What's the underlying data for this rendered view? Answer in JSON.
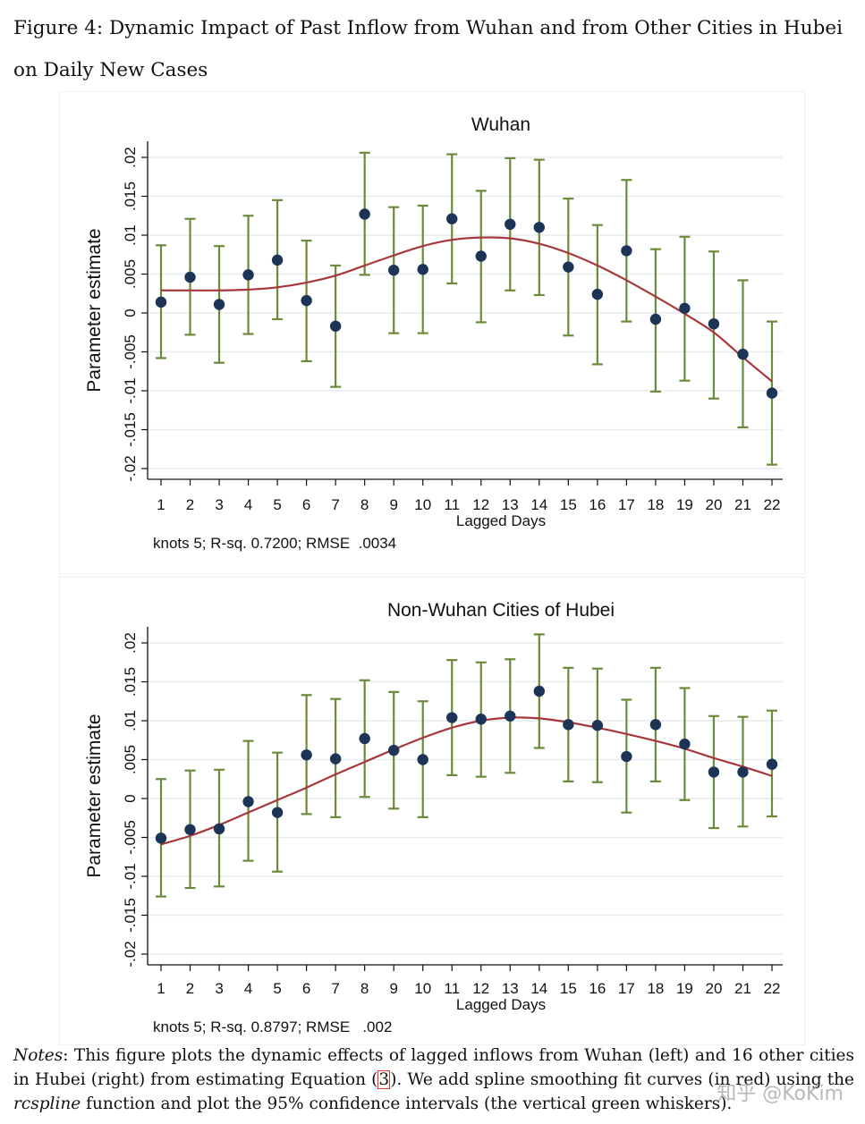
{
  "caption": {
    "text": "Figure 4: Dynamic Impact of Past Inflow from Wuhan and from Other Cities in Hubei on Daily New Cases"
  },
  "notes": {
    "label": "Notes",
    "part1": ": This figure plots the dynamic effects of lagged inflows from Wuhan (left) and 16 other cities in Hubei (right) from estimating Equation (",
    "ref": "3",
    "part2": "). We add spline smoothing fit curves (in red) using the ",
    "func": "rcspline",
    "part3": " function and plot the 95% confidence intervals (the vertical green whiskers)."
  },
  "watermark": "知乎 @KoKim",
  "colors": {
    "point": "#1c3557",
    "whisker": "#6b8a3a",
    "fit": "#a6383c",
    "grid": "#e6ecef",
    "axis": "#111111"
  },
  "chart_data": [
    {
      "type": "scatter",
      "title": "Wuhan",
      "xlabel": "Lagged Days",
      "ylabel": "Parameter estimate",
      "note": "knots 5; R-sq. 0.7200; RMSE  .0034",
      "xlim": [
        1,
        22
      ],
      "ylim": [
        -0.02,
        0.02
      ],
      "xticks": [
        "1",
        "2",
        "3",
        "4",
        "5",
        "6",
        "7",
        "8",
        "9",
        "10",
        "11",
        "12",
        "13",
        "14",
        "15",
        "16",
        "17",
        "18",
        "19",
        "20",
        "21",
        "22"
      ],
      "yticks": [
        {
          "v": -0.02,
          "label": "-.02"
        },
        {
          "v": -0.015,
          "label": "-.015"
        },
        {
          "v": -0.01,
          "label": "-.01"
        },
        {
          "v": -0.005,
          "label": "-.005"
        },
        {
          "v": 0,
          "label": "0"
        },
        {
          "v": 0.005,
          "label": ".005"
        },
        {
          "v": 0.01,
          "label": ".01"
        },
        {
          "v": 0.015,
          "label": ".015"
        },
        {
          "v": 0.02,
          "label": ".02"
        }
      ],
      "grid": true,
      "x": [
        1,
        2,
        3,
        4,
        5,
        6,
        7,
        8,
        9,
        10,
        11,
        12,
        13,
        14,
        15,
        16,
        17,
        18,
        19,
        20,
        21,
        22
      ],
      "estimate": [
        0.0014,
        0.0046,
        0.0011,
        0.0049,
        0.0068,
        0.0016,
        -0.0017,
        0.0127,
        0.0055,
        0.0056,
        0.0121,
        0.0073,
        0.0114,
        0.011,
        0.0059,
        0.0024,
        0.008,
        -0.0008,
        0.0006,
        -0.0014,
        -0.0053,
        -0.0103
      ],
      "ci_lower": [
        -0.0058,
        -0.0028,
        -0.0064,
        -0.0027,
        -0.0008,
        -0.0062,
        -0.0095,
        0.0049,
        -0.0026,
        -0.0026,
        0.0038,
        -0.0012,
        0.0029,
        0.0023,
        -0.0029,
        -0.0066,
        -0.0011,
        -0.0101,
        -0.0087,
        -0.011,
        -0.0147,
        -0.0195
      ],
      "ci_upper": [
        0.0087,
        0.0121,
        0.0086,
        0.0125,
        0.0145,
        0.0093,
        0.0061,
        0.0206,
        0.0136,
        0.0138,
        0.0204,
        0.0157,
        0.0199,
        0.0197,
        0.0147,
        0.0113,
        0.0171,
        0.0082,
        0.0098,
        0.0079,
        0.0042,
        -0.0011
      ],
      "fit": [
        0.0029,
        0.0029,
        0.0029,
        0.003,
        0.0033,
        0.0039,
        0.0048,
        0.0061,
        0.0074,
        0.0086,
        0.0094,
        0.0097,
        0.0096,
        0.0089,
        0.0077,
        0.0061,
        0.0042,
        0.0021,
        -0.0001,
        -0.0025,
        -0.0057,
        -0.0088
      ]
    },
    {
      "type": "scatter",
      "title": "Non-Wuhan Cities of Hubei",
      "xlabel": "Lagged Days",
      "ylabel": "Parameter estimate",
      "note": "knots 5; R-sq. 0.8797; RMSE   .002",
      "xlim": [
        1,
        22
      ],
      "ylim": [
        -0.02,
        0.02
      ],
      "xticks": [
        "1",
        "2",
        "3",
        "4",
        "5",
        "6",
        "7",
        "8",
        "9",
        "10",
        "11",
        "12",
        "13",
        "14",
        "15",
        "16",
        "17",
        "18",
        "19",
        "20",
        "21",
        "22"
      ],
      "yticks": [
        {
          "v": -0.02,
          "label": "-.02"
        },
        {
          "v": -0.015,
          "label": "-.015"
        },
        {
          "v": -0.01,
          "label": "-.01"
        },
        {
          "v": -0.005,
          "label": "-.005"
        },
        {
          "v": 0,
          "label": "0"
        },
        {
          "v": 0.005,
          "label": ".005"
        },
        {
          "v": 0.01,
          "label": ".01"
        },
        {
          "v": 0.015,
          "label": ".015"
        },
        {
          "v": 0.02,
          "label": ".02"
        }
      ],
      "grid": true,
      "x": [
        1,
        2,
        3,
        4,
        5,
        6,
        7,
        8,
        9,
        10,
        11,
        12,
        13,
        14,
        15,
        16,
        17,
        18,
        19,
        20,
        21,
        22
      ],
      "estimate": [
        -0.0051,
        -0.004,
        -0.0039,
        -0.0004,
        -0.0018,
        0.0056,
        0.0051,
        0.0077,
        0.0062,
        0.005,
        0.0104,
        0.0102,
        0.0106,
        0.0138,
        0.0095,
        0.0094,
        0.0054,
        0.0095,
        0.007,
        0.0034,
        0.0034,
        0.0044
      ],
      "ci_lower": [
        -0.0126,
        -0.0115,
        -0.0113,
        -0.008,
        -0.0094,
        -0.002,
        -0.0024,
        0.0002,
        -0.0013,
        -0.0024,
        0.003,
        0.0028,
        0.0033,
        0.0065,
        0.0022,
        0.0021,
        -0.0018,
        0.0022,
        -0.0002,
        -0.0038,
        -0.0036,
        -0.0023
      ],
      "ci_upper": [
        0.0025,
        0.0036,
        0.0037,
        0.0074,
        0.0059,
        0.0133,
        0.0128,
        0.0152,
        0.0137,
        0.0125,
        0.0178,
        0.0175,
        0.0179,
        0.0211,
        0.0168,
        0.0167,
        0.0127,
        0.0168,
        0.0142,
        0.0106,
        0.0105,
        0.0113
      ],
      "fit": [
        -0.0059,
        -0.0048,
        -0.0034,
        -0.0018,
        -0.0002,
        0.0014,
        0.0031,
        0.0047,
        0.0063,
        0.0078,
        0.0091,
        0.01,
        0.0104,
        0.0103,
        0.0098,
        0.0091,
        0.0083,
        0.0074,
        0.0064,
        0.0052,
        0.0041,
        0.0029
      ]
    }
  ]
}
